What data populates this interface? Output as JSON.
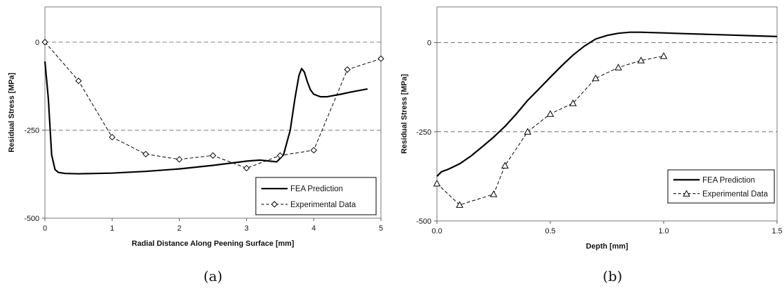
{
  "chart_data": [
    {
      "type": "line",
      "caption": "(a)",
      "xlabel": "Radial Distance Along Peening Surface [mm]",
      "ylabel": "Residual Stress [MPa]",
      "xlim": [
        0,
        5
      ],
      "ylim": [
        -500,
        100
      ],
      "xticks": [
        "0",
        "1",
        "2",
        "3",
        "4",
        "5"
      ],
      "yticks": [
        "0",
        "-250",
        "-500"
      ],
      "grid": "dashed horizontal at 0 and -250",
      "legend_position": "bottom-right",
      "series": [
        {
          "name": "FEA Prediction",
          "style": "solid",
          "marker": "none",
          "x": [
            0.0,
            0.05,
            0.1,
            0.15,
            0.2,
            0.3,
            0.5,
            1.0,
            1.5,
            2.0,
            2.5,
            3.0,
            3.2,
            3.45,
            3.55,
            3.65,
            3.72,
            3.78,
            3.82,
            3.86,
            3.9,
            3.95,
            4.0,
            4.1,
            4.2,
            4.4,
            4.6,
            4.8
          ],
          "y": [
            -55,
            -160,
            -320,
            -362,
            -370,
            -373,
            -374,
            -372,
            -367,
            -360,
            -350,
            -338,
            -335,
            -340,
            -320,
            -250,
            -160,
            -95,
            -75,
            -85,
            -110,
            -135,
            -148,
            -155,
            -155,
            -148,
            -140,
            -133
          ]
        },
        {
          "name": "Experimental Data",
          "style": "dashed",
          "marker": "diamond",
          "x": [
            0,
            0.5,
            1,
            1.5,
            2,
            2.5,
            3,
            3.5,
            4,
            4.5,
            5
          ],
          "y": [
            0,
            -110,
            -270,
            -318,
            -333,
            -322,
            -358,
            -322,
            -307,
            -78,
            -47
          ]
        }
      ]
    },
    {
      "type": "line",
      "caption": "(b)",
      "xlabel": "Depth [mm]",
      "ylabel": "Residual Stress [MPa]",
      "xlim": [
        0,
        1.5
      ],
      "ylim": [
        -500,
        100
      ],
      "xticks": [
        "0.0",
        "0.5",
        "1.0",
        "1.5"
      ],
      "yticks": [
        "0",
        "-250",
        "-500"
      ],
      "grid": "dashed horizontal at 0 and -250",
      "legend_position": "bottom-right",
      "series": [
        {
          "name": "FEA Prediction",
          "style": "solid",
          "marker": "none",
          "x": [
            0.0,
            0.02,
            0.05,
            0.1,
            0.15,
            0.2,
            0.25,
            0.3,
            0.35,
            0.4,
            0.45,
            0.5,
            0.55,
            0.6,
            0.65,
            0.7,
            0.75,
            0.8,
            0.85,
            0.9,
            1.0,
            1.1,
            1.2,
            1.3,
            1.4,
            1.5
          ],
          "y": [
            -375,
            -362,
            -355,
            -340,
            -318,
            -292,
            -265,
            -235,
            -200,
            -162,
            -130,
            -97,
            -65,
            -35,
            -10,
            10,
            20,
            26,
            29,
            29,
            27,
            25,
            23,
            21,
            19,
            17
          ]
        },
        {
          "name": "Experimental Data",
          "style": "dashed",
          "marker": "triangle",
          "x": [
            0,
            0.1,
            0.25,
            0.3,
            0.4,
            0.5,
            0.6,
            0.7,
            0.8,
            0.9,
            1.0
          ],
          "y": [
            -395,
            -455,
            -425,
            -345,
            -250,
            -200,
            -170,
            -100,
            -70,
            -50,
            -38
          ]
        }
      ]
    }
  ]
}
